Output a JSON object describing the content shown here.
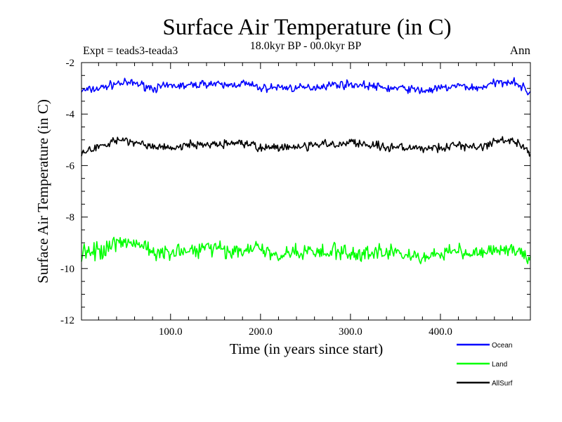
{
  "chart_data": {
    "type": "line",
    "title": "Surface Air Temperature (in C)",
    "subtitle": "18.0kyr BP - 00.0kyr BP",
    "experiment_label": "Expt = teads3-teada3",
    "season_label": "Ann",
    "xlabel": "Time (in years since start)",
    "ylabel": "Surface Air Temperature (in C)",
    "xlim": [
      1,
      500
    ],
    "ylim": [
      -12,
      -2
    ],
    "x_ticks": [
      100,
      200,
      300,
      400
    ],
    "x_tick_labels": [
      "100.0",
      "200.0",
      "300.0",
      "400.0"
    ],
    "y_ticks": [
      -2,
      -4,
      -6,
      -8,
      -10,
      -12
    ],
    "y_tick_labels": [
      "-2",
      "-4",
      "-6",
      "-8",
      "-10",
      "-12"
    ],
    "grid": false,
    "legend_position": "bottom-right",
    "series": [
      {
        "name": "Ocean",
        "color": "#0000ff",
        "x": [
          1,
          21,
          41,
          61,
          81,
          101,
          121,
          141,
          161,
          181,
          201,
          221,
          241,
          261,
          281,
          301,
          321,
          341,
          361,
          381,
          401,
          421,
          441,
          461,
          481,
          500
        ],
        "values": [
          -3.1,
          -3.0,
          -2.8,
          -2.8,
          -3.0,
          -2.9,
          -2.9,
          -2.8,
          -2.9,
          -2.8,
          -3.0,
          -2.95,
          -3.0,
          -2.95,
          -2.85,
          -2.85,
          -2.9,
          -3.0,
          -3.0,
          -3.1,
          -3.0,
          -2.9,
          -3.0,
          -2.8,
          -2.7,
          -3.2
        ]
      },
      {
        "name": "Land",
        "color": "#00ff00",
        "x": [
          1,
          21,
          41,
          61,
          81,
          101,
          121,
          141,
          161,
          181,
          201,
          221,
          241,
          261,
          281,
          301,
          321,
          341,
          361,
          381,
          401,
          421,
          441,
          461,
          481,
          500
        ],
        "values": [
          -9.4,
          -9.3,
          -9.0,
          -9.1,
          -9.3,
          -9.4,
          -9.3,
          -9.2,
          -9.3,
          -9.3,
          -9.2,
          -9.5,
          -9.3,
          -9.5,
          -9.3,
          -9.4,
          -9.4,
          -9.3,
          -9.5,
          -9.6,
          -9.4,
          -9.3,
          -9.5,
          -9.3,
          -9.2,
          -9.7
        ]
      },
      {
        "name": "AllSurf",
        "color": "#000000",
        "x": [
          1,
          21,
          41,
          61,
          81,
          101,
          121,
          141,
          161,
          181,
          201,
          221,
          241,
          261,
          281,
          301,
          321,
          341,
          361,
          381,
          401,
          421,
          441,
          461,
          481,
          500
        ],
        "values": [
          -5.5,
          -5.3,
          -5.0,
          -5.1,
          -5.3,
          -5.3,
          -5.2,
          -5.2,
          -5.2,
          -5.1,
          -5.3,
          -5.3,
          -5.3,
          -5.2,
          -5.2,
          -5.1,
          -5.2,
          -5.3,
          -5.3,
          -5.4,
          -5.3,
          -5.2,
          -5.3,
          -5.1,
          -5.0,
          -5.5
        ]
      }
    ]
  }
}
